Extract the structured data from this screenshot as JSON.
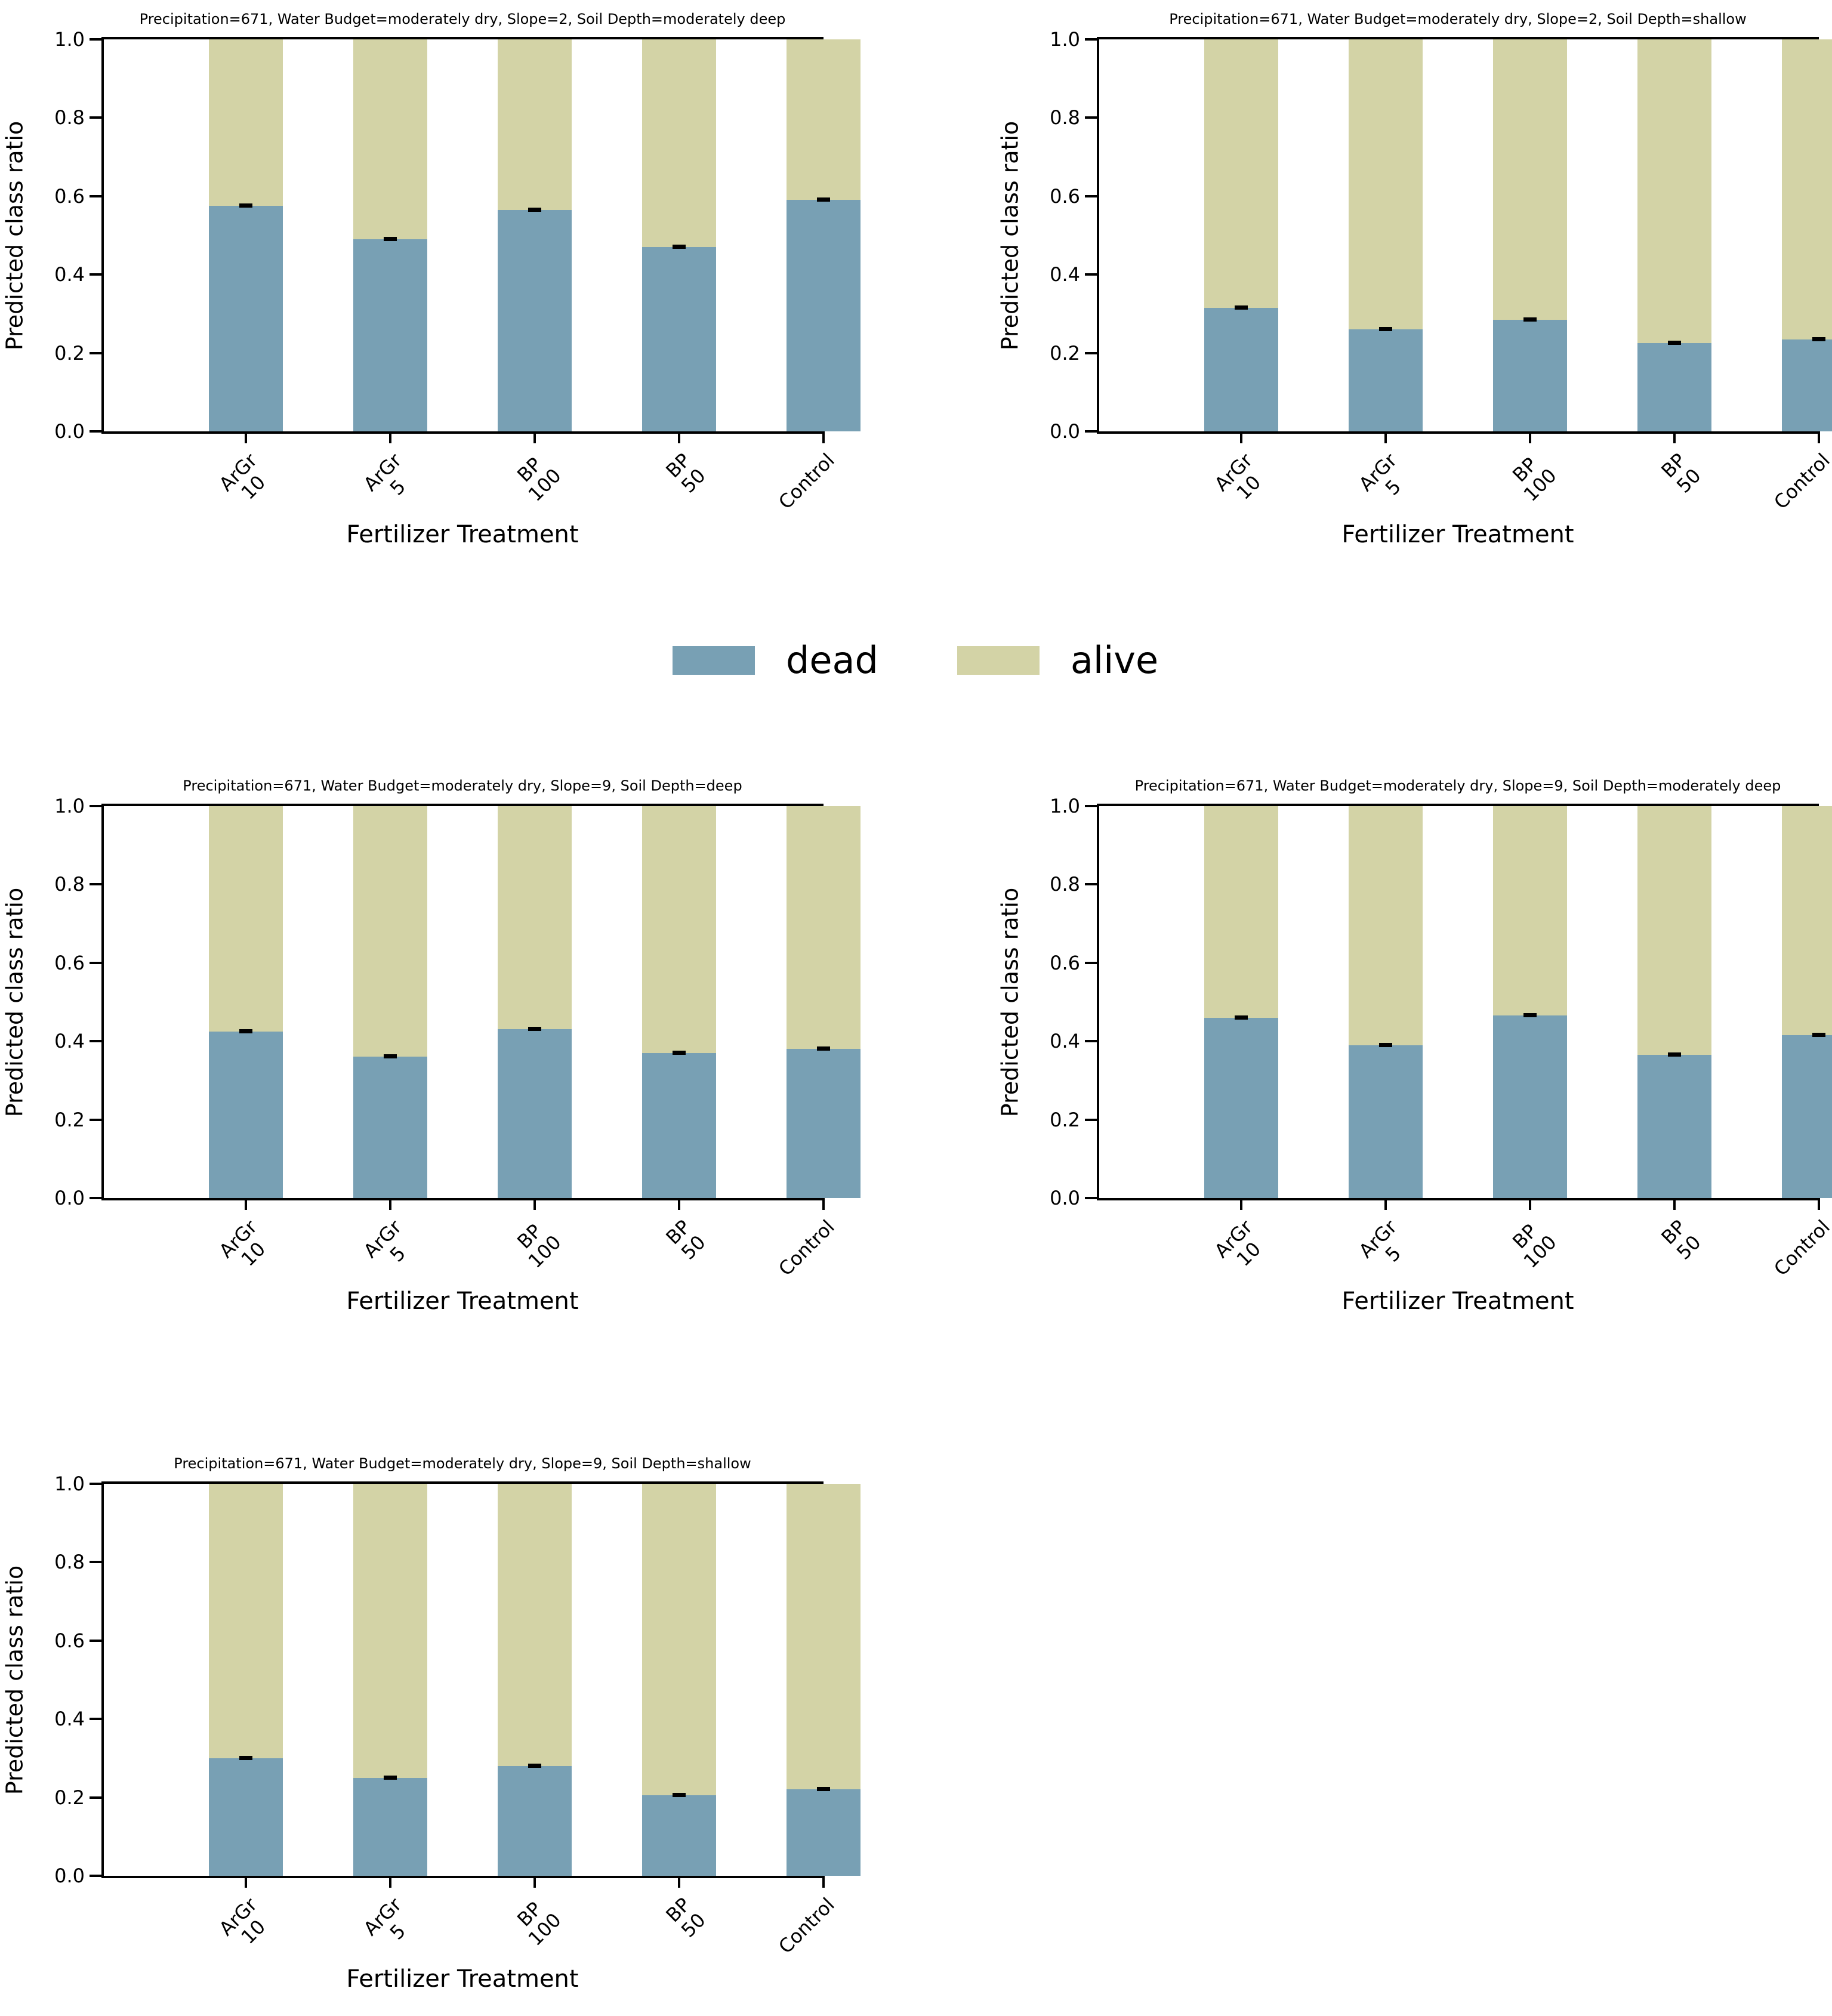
{
  "figure": {
    "background": "#ffffff",
    "ylabel": "Predicted class ratio",
    "xlabel": "Fertilizer Treatment",
    "ytick_labels": [
      "0.0",
      "0.2",
      "0.4",
      "0.6",
      "0.8",
      "1.0"
    ],
    "categories": [
      [
        "ArGr",
        "10"
      ],
      [
        "ArGr",
        "5"
      ],
      [
        "BP",
        "100"
      ],
      [
        "BP",
        "50"
      ],
      [
        "Control"
      ]
    ],
    "colors": {
      "dead": "#78a0b4",
      "alive": "#d3d3a6",
      "error_bar": "#000000",
      "axis": "#000000"
    },
    "legend": {
      "position": "center between row 1 and row 2",
      "items": [
        {
          "label": "dead",
          "color": "#78a0b4"
        },
        {
          "label": "alive",
          "color": "#d3d3a6"
        }
      ]
    }
  },
  "chart_data": [
    {
      "type": "bar",
      "stacked": true,
      "title": "Precipitation=671, Water Budget=moderately dry, Slope=2, Soil Depth=moderately deep",
      "categories": [
        "ArGr 10",
        "ArGr 5",
        "BP 100",
        "BP 50",
        "Control"
      ],
      "xlabel": "Fertilizer Treatment",
      "ylabel": "Predicted class ratio",
      "ylim": [
        0.0,
        1.0
      ],
      "yticks": [
        0.0,
        0.2,
        0.4,
        0.6,
        0.8,
        1.0
      ],
      "grid": false,
      "series": [
        {
          "name": "dead",
          "values": [
            0.575,
            0.49,
            0.565,
            0.47,
            0.59
          ],
          "errors": [
            0.005,
            0.005,
            0.005,
            0.005,
            0.005
          ]
        },
        {
          "name": "alive",
          "values": [
            0.425,
            0.51,
            0.435,
            0.53,
            0.41
          ]
        }
      ]
    },
    {
      "type": "bar",
      "stacked": true,
      "title": "Precipitation=671, Water Budget=moderately dry, Slope=2, Soil Depth=shallow",
      "categories": [
        "ArGr 10",
        "ArGr 5",
        "BP 100",
        "BP 50",
        "Control"
      ],
      "xlabel": "Fertilizer Treatment",
      "ylabel": "Predicted class ratio",
      "ylim": [
        0.0,
        1.0
      ],
      "yticks": [
        0.0,
        0.2,
        0.4,
        0.6,
        0.8,
        1.0
      ],
      "grid": false,
      "series": [
        {
          "name": "dead",
          "values": [
            0.315,
            0.26,
            0.285,
            0.225,
            0.235
          ],
          "errors": [
            0.005,
            0.005,
            0.005,
            0.005,
            0.005
          ]
        },
        {
          "name": "alive",
          "values": [
            0.685,
            0.74,
            0.715,
            0.775,
            0.765
          ]
        }
      ]
    },
    {
      "type": "bar",
      "stacked": true,
      "title": "Precipitation=671, Water Budget=moderately dry, Slope=9, Soil Depth=deep",
      "categories": [
        "ArGr 10",
        "ArGr 5",
        "BP 100",
        "BP 50",
        "Control"
      ],
      "xlabel": "Fertilizer Treatment",
      "ylabel": "Predicted class ratio",
      "ylim": [
        0.0,
        1.0
      ],
      "yticks": [
        0.0,
        0.2,
        0.4,
        0.6,
        0.8,
        1.0
      ],
      "grid": false,
      "series": [
        {
          "name": "dead",
          "values": [
            0.425,
            0.36,
            0.43,
            0.37,
            0.38
          ],
          "errors": [
            0.005,
            0.005,
            0.005,
            0.005,
            0.005
          ]
        },
        {
          "name": "alive",
          "values": [
            0.575,
            0.64,
            0.57,
            0.63,
            0.62
          ]
        }
      ]
    },
    {
      "type": "bar",
      "stacked": true,
      "title": "Precipitation=671, Water Budget=moderately dry, Slope=9, Soil Depth=moderately deep",
      "categories": [
        "ArGr 10",
        "ArGr 5",
        "BP 100",
        "BP 50",
        "Control"
      ],
      "xlabel": "Fertilizer Treatment",
      "ylabel": "Predicted class ratio",
      "ylim": [
        0.0,
        1.0
      ],
      "yticks": [
        0.0,
        0.2,
        0.4,
        0.6,
        0.8,
        1.0
      ],
      "grid": false,
      "series": [
        {
          "name": "dead",
          "values": [
            0.46,
            0.39,
            0.465,
            0.365,
            0.415
          ],
          "errors": [
            0.005,
            0.005,
            0.005,
            0.005,
            0.005
          ]
        },
        {
          "name": "alive",
          "values": [
            0.54,
            0.61,
            0.535,
            0.635,
            0.585
          ]
        }
      ]
    },
    {
      "type": "bar",
      "stacked": true,
      "title": "Precipitation=671, Water Budget=moderately dry, Slope=9, Soil Depth=shallow",
      "categories": [
        "ArGr 10",
        "ArGr 5",
        "BP 100",
        "BP 50",
        "Control"
      ],
      "xlabel": "Fertilizer Treatment",
      "ylabel": "Predicted class ratio",
      "ylim": [
        0.0,
        1.0
      ],
      "yticks": [
        0.0,
        0.2,
        0.4,
        0.6,
        0.8,
        1.0
      ],
      "grid": false,
      "series": [
        {
          "name": "dead",
          "values": [
            0.3,
            0.25,
            0.28,
            0.205,
            0.22
          ],
          "errors": [
            0.005,
            0.005,
            0.005,
            0.005,
            0.005
          ]
        },
        {
          "name": "alive",
          "values": [
            0.7,
            0.75,
            0.72,
            0.795,
            0.78
          ]
        }
      ]
    }
  ]
}
